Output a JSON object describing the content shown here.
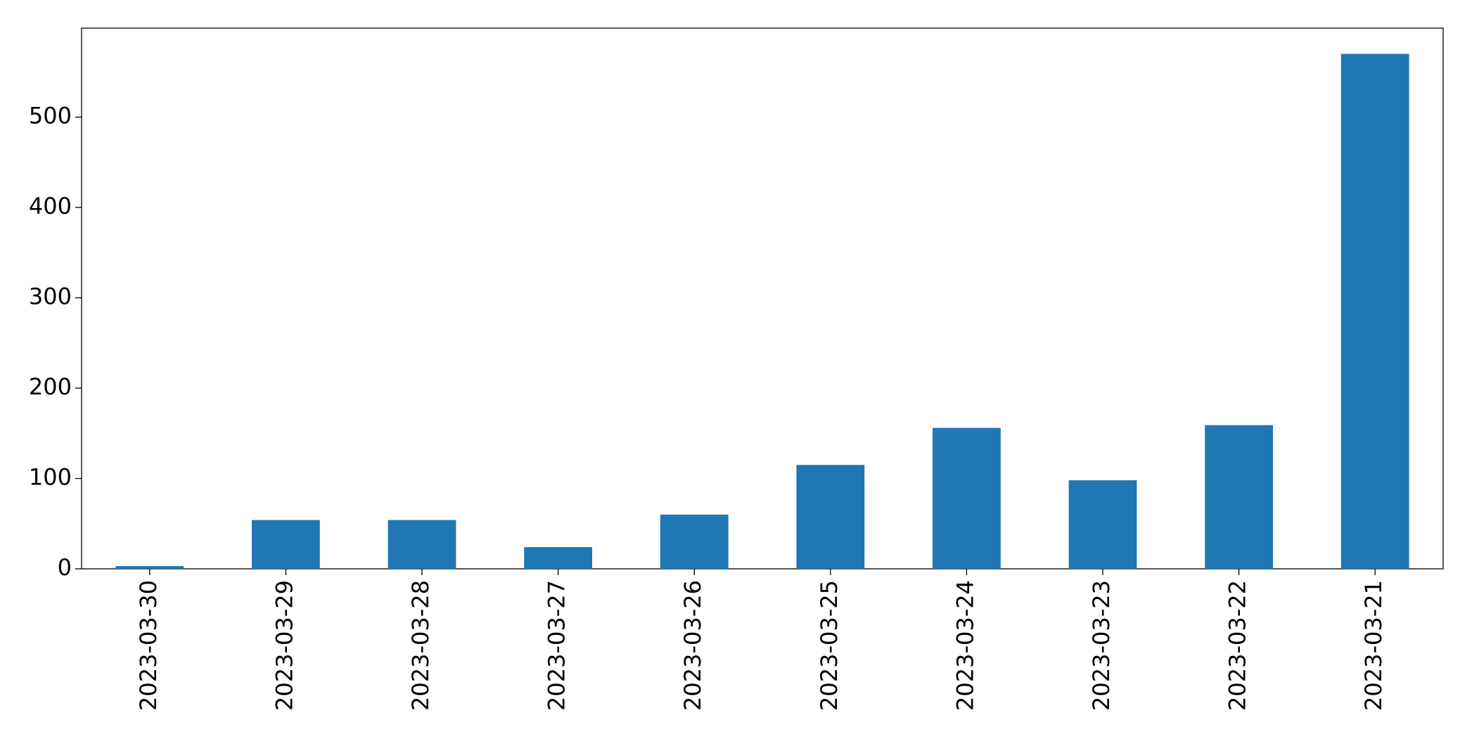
{
  "chart_data": {
    "type": "bar",
    "categories": [
      "2023-03-30",
      "2023-03-29",
      "2023-03-28",
      "2023-03-27",
      "2023-03-26",
      "2023-03-25",
      "2023-03-24",
      "2023-03-23",
      "2023-03-22",
      "2023-03-21"
    ],
    "values": [
      3,
      54,
      54,
      24,
      60,
      115,
      156,
      98,
      159,
      570
    ],
    "color": "#1f77b4",
    "ylim": [
      0,
      598.5
    ],
    "yticks": [
      0,
      100,
      200,
      300,
      400,
      500
    ],
    "grid": false
  }
}
